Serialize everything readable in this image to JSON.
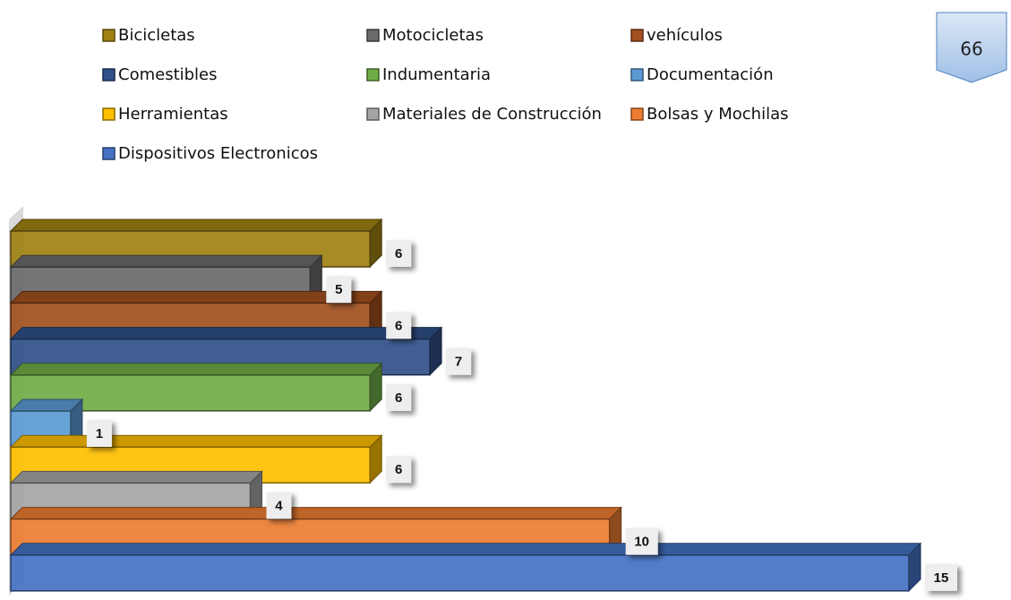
{
  "page_number": "66",
  "chart_data": {
    "type": "bar3d_horizontal",
    "series": [
      {
        "name": "Bicicletas",
        "color": "#a08214",
        "values": [
          6
        ]
      },
      {
        "name": "Motocicletas",
        "color": "#6a6a6a",
        "values": [
          5
        ]
      },
      {
        "name": "vehículos",
        "color": "#a2501f",
        "values": [
          6
        ]
      },
      {
        "name": "Comestibles",
        "color": "#30508a",
        "values": [
          7
        ]
      },
      {
        "name": "Indumentaria",
        "color": "#70ad47",
        "values": [
          6
        ]
      },
      {
        "name": "Documentación",
        "color": "#5b9bd5",
        "values": [
          1
        ]
      },
      {
        "name": "Herramientas",
        "color": "#ffc000",
        "values": [
          6
        ]
      },
      {
        "name": "Materiales de Construcción",
        "color": "#a5a5a5",
        "values": [
          4
        ]
      },
      {
        "name": "Bolsas y Mochilas",
        "color": "#ed7d31",
        "values": [
          10
        ]
      },
      {
        "name": "Dispositivos Electronicos",
        "color": "#4472c4",
        "values": [
          15
        ]
      }
    ],
    "xlim": [
      0,
      15
    ],
    "legend": "top"
  }
}
